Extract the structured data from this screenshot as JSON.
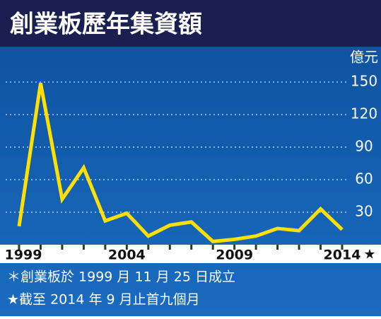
{
  "chart_data": {
    "type": "line",
    "title": "創業板歷年集資額",
    "y_unit": "億元",
    "categories": [
      "1999",
      null,
      null,
      null,
      null,
      "2004",
      null,
      null,
      null,
      null,
      "2009",
      null,
      null,
      null,
      null,
      "2014"
    ],
    "x_note": "★",
    "series": [
      {
        "color": "#ffe000",
        "values": [
          17,
          149,
          42,
          71,
          22,
          29,
          8,
          18,
          21,
          3,
          5,
          8,
          15,
          13,
          33,
          14
        ]
      }
    ],
    "ylim": [
      0,
      165
    ],
    "yticks": [
      30,
      60,
      90,
      120,
      150
    ],
    "grid": true,
    "notes": [
      "＊創業板於 1999 月 11 月 25 日成立",
      "★截至 2014 年 9 月止首九個月"
    ]
  }
}
